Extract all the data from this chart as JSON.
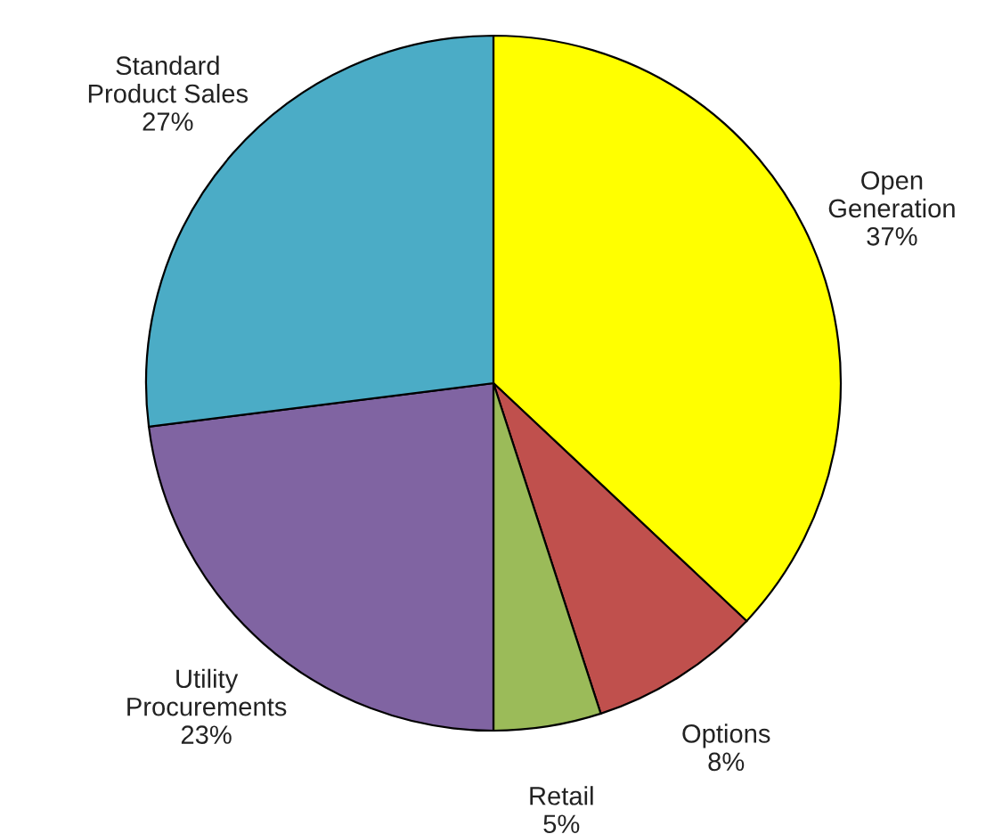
{
  "chart_data": {
    "type": "pie",
    "categories": [
      "Open\nGeneration",
      "Options",
      "Retail",
      "Utility\nProcurements",
      "Standard\nProduct Sales"
    ],
    "values": [
      37,
      8,
      5,
      23,
      27
    ],
    "value_labels": [
      "37%",
      "8%",
      "5%",
      "23%",
      "27%"
    ],
    "colors": [
      "#ffff00",
      "#c0504d",
      "#9bbb59",
      "#8064a2",
      "#4bacc6"
    ]
  }
}
